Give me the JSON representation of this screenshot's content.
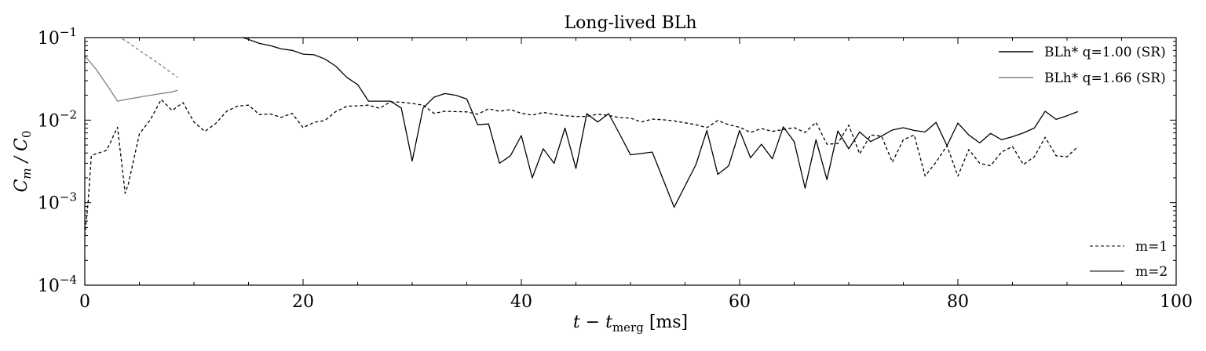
{
  "chart_data": {
    "type": "line",
    "title": "Long-lived BLh",
    "xlabel": "t − t",
    "xlabel_sub": "merg",
    "xlabel_unit": " [ms]",
    "ylabel": "C",
    "ylabel_sub1": "m",
    "ylabel_div": " / C",
    "ylabel_sub2": "0",
    "xlim": [
      0,
      100
    ],
    "ylim": [
      0.0001,
      0.1
    ],
    "yscale": "log",
    "xticks": [
      0,
      20,
      40,
      60,
      80,
      100
    ],
    "xtick_labels": [
      "0",
      "20",
      "40",
      "60",
      "80",
      "100"
    ],
    "yticks": [
      0.0001,
      0.001,
      0.01,
      0.1
    ],
    "ytick_base": "10",
    "ytick_exponents": [
      "−4",
      "−3",
      "−2",
      "−1"
    ],
    "grid": false,
    "legend_models": {
      "placement": "top-right",
      "entries": [
        {
          "label": "BLh* q=1.00 (SR)",
          "color": "#000000"
        },
        {
          "label": "BLh* q=1.66 (SR)",
          "color": "#808080"
        }
      ]
    },
    "legend_modes": {
      "placement": "bottom-right",
      "entries": [
        {
          "label": "m=1",
          "dash": true
        },
        {
          "label": "m=2",
          "dash": false
        }
      ]
    },
    "series": [
      {
        "model": "BLh* q=1.00 (SR)",
        "mode": "m=2",
        "color": "#000000",
        "dash": false,
        "x": [
          0,
          1,
          2,
          3,
          4,
          5,
          6,
          7,
          8,
          9,
          10,
          11,
          12,
          13,
          14,
          15,
          16,
          17,
          18,
          19,
          20,
          21,
          22,
          23,
          24,
          25,
          26,
          27,
          28,
          29,
          30,
          31,
          32,
          33,
          34,
          35,
          36,
          37,
          38,
          39,
          40,
          41,
          42,
          43,
          44,
          45,
          46,
          47,
          48,
          49,
          50,
          52,
          54,
          56,
          57,
          58,
          59,
          60,
          61,
          62,
          63,
          64,
          65,
          66,
          67,
          68,
          69,
          70,
          71,
          72,
          73,
          74,
          75,
          76,
          77,
          78,
          79,
          80,
          81,
          82,
          83,
          84,
          85,
          86,
          87,
          88,
          89,
          90,
          91
        ],
        "y": [
          0.11,
          0.11,
          0.11,
          0.11,
          0.11,
          0.11,
          0.11,
          0.11,
          0.11,
          0.11,
          0.11,
          0.11,
          0.11,
          0.11,
          0.105,
          0.095,
          0.085,
          0.08,
          0.073,
          0.07,
          0.063,
          0.062,
          0.055,
          0.045,
          0.033,
          0.027,
          0.017,
          0.017,
          0.017,
          0.014,
          0.0032,
          0.014,
          0.019,
          0.021,
          0.02,
          0.018,
          0.0088,
          0.009,
          0.003,
          0.0037,
          0.0065,
          0.002,
          0.0045,
          0.003,
          0.008,
          0.0026,
          0.012,
          0.0095,
          0.012,
          0.0068,
          0.0038,
          0.0041,
          0.00088,
          0.0029,
          0.0075,
          0.0022,
          0.0028,
          0.0075,
          0.0035,
          0.0051,
          0.0034,
          0.0083,
          0.0055,
          0.0015,
          0.0058,
          0.0019,
          0.0074,
          0.0045,
          0.0072,
          0.0055,
          0.0064,
          0.0076,
          0.0081,
          0.0075,
          0.0072,
          0.0094,
          0.0049,
          0.0092,
          0.0066,
          0.0053,
          0.0069,
          0.0058,
          0.0063,
          0.007,
          0.008,
          0.0128,
          0.0102,
          0.0113,
          0.0127
        ]
      },
      {
        "model": "BLh* q=1.00 (SR)",
        "mode": "m=1",
        "color": "#000000",
        "dash": true,
        "x": [
          0,
          0.3,
          0.6,
          1,
          2,
          3,
          3.7,
          4,
          5,
          6,
          7,
          8,
          9,
          10,
          11,
          12,
          13,
          14,
          15,
          16,
          17,
          18,
          19,
          20,
          21,
          22,
          23,
          24,
          25,
          26,
          27,
          28,
          29,
          30,
          31,
          32,
          33,
          34,
          35,
          36,
          37,
          38,
          39,
          40,
          41,
          42,
          43,
          44,
          45,
          46,
          47,
          48,
          49,
          50,
          51,
          52,
          53,
          54,
          55,
          56,
          57,
          58,
          59,
          60,
          61,
          62,
          63,
          64,
          65,
          66,
          67,
          68,
          69,
          70,
          71,
          72,
          73,
          74,
          75,
          76,
          77,
          78,
          79,
          80,
          81,
          82,
          83,
          84,
          85,
          86,
          87,
          88,
          89,
          90,
          91
        ],
        "y": [
          0.0004,
          0.001,
          0.0037,
          0.0039,
          0.0043,
          0.0082,
          0.0013,
          0.0017,
          0.0068,
          0.0101,
          0.0178,
          0.0131,
          0.0163,
          0.0095,
          0.0073,
          0.0091,
          0.0128,
          0.0148,
          0.0152,
          0.0117,
          0.0119,
          0.0108,
          0.0121,
          0.0081,
          0.0094,
          0.0099,
          0.0127,
          0.0147,
          0.0149,
          0.0152,
          0.0139,
          0.0166,
          0.0165,
          0.0159,
          0.0152,
          0.0121,
          0.0128,
          0.0127,
          0.0126,
          0.0118,
          0.0137,
          0.0128,
          0.0134,
          0.0121,
          0.0115,
          0.0124,
          0.0118,
          0.0113,
          0.0111,
          0.0111,
          0.0118,
          0.0114,
          0.0107,
          0.0106,
          0.0095,
          0.0103,
          0.0101,
          0.0098,
          0.0093,
          0.0088,
          0.0081,
          0.0099,
          0.0088,
          0.0082,
          0.0071,
          0.0079,
          0.0073,
          0.0077,
          0.0081,
          0.0071,
          0.0094,
          0.0051,
          0.0052,
          0.0087,
          0.0039,
          0.0066,
          0.0064,
          0.0031,
          0.0058,
          0.0066,
          0.0021,
          0.0031,
          0.0049,
          0.0021,
          0.0044,
          0.003,
          0.0028,
          0.0041,
          0.0048,
          0.0029,
          0.0036,
          0.0062,
          0.0037,
          0.0036,
          0.0048
        ]
      },
      {
        "model": "BLh* q=1.66 (SR)",
        "mode": "m=2",
        "color": "#808080",
        "dash": false,
        "x": [
          0,
          1,
          2,
          3,
          4,
          5,
          6,
          7,
          8,
          8.5
        ],
        "y": [
          0.06,
          0.042,
          0.027,
          0.017,
          0.018,
          0.019,
          0.02,
          0.021,
          0.022,
          0.023
        ]
      },
      {
        "model": "BLh* q=1.66 (SR)",
        "mode": "m=1",
        "color": "#808080",
        "dash": true,
        "x": [
          3,
          4,
          5,
          6,
          7,
          8,
          8.5
        ],
        "y": [
          0.105,
          0.087,
          0.07,
          0.057,
          0.046,
          0.037,
          0.033
        ]
      }
    ]
  }
}
